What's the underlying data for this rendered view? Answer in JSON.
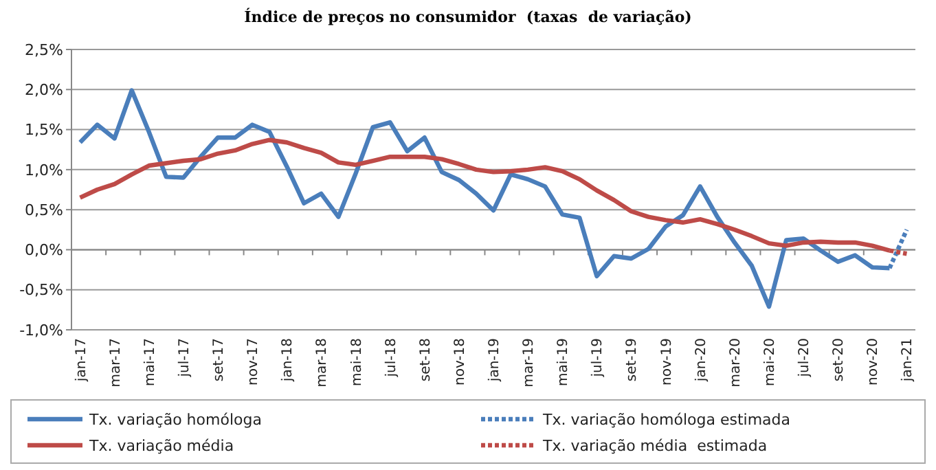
{
  "chart_data": {
    "type": "line",
    "title": "Índice de preços no consumidor  (taxas  de variação)",
    "categories": [
      "jan-17",
      null,
      "mar-17",
      null,
      "mai-17",
      null,
      "jul-17",
      null,
      "set-17",
      null,
      "nov-17",
      null,
      "jan-18",
      null,
      "mar-18",
      null,
      "mai-18",
      null,
      "jul-18",
      null,
      "set-18",
      null,
      "nov-18",
      null,
      "jan-19",
      null,
      "mar-19",
      null,
      "mai-19",
      null,
      "jul-19",
      null,
      "set-19",
      null,
      "nov-19",
      null,
      "jan-20",
      null,
      "mar-20",
      null,
      "mai-20",
      null,
      "jul-20",
      null,
      "set-20",
      null,
      "nov-20",
      null,
      "jan-21"
    ],
    "series": [
      {
        "name": "Tx. variação homóloga",
        "color": "#4a7ebb",
        "line_style": "solid",
        "values": [
          1.34,
          1.56,
          1.39,
          1.99,
          1.47,
          0.91,
          0.9,
          1.16,
          1.4,
          1.4,
          1.56,
          1.47,
          1.04,
          0.58,
          0.7,
          0.41,
          0.95,
          1.53,
          1.59,
          1.23,
          1.4,
          0.97,
          0.87,
          0.7,
          0.49,
          0.94,
          0.88,
          0.79,
          0.44,
          0.4,
          -0.33,
          -0.08,
          -0.11,
          0.01,
          0.29,
          0.43,
          0.79,
          0.41,
          0.09,
          -0.2,
          -0.71,
          0.12,
          0.14,
          -0.01,
          -0.15,
          -0.07,
          -0.22,
          -0.23,
          null
        ]
      },
      {
        "name": "Tx. variação homóloga estimada",
        "color": "#4a7ebb",
        "line_style": "dotted",
        "values": [
          null,
          null,
          null,
          null,
          null,
          null,
          null,
          null,
          null,
          null,
          null,
          null,
          null,
          null,
          null,
          null,
          null,
          null,
          null,
          null,
          null,
          null,
          null,
          null,
          null,
          null,
          null,
          null,
          null,
          null,
          null,
          null,
          null,
          null,
          null,
          null,
          null,
          null,
          null,
          null,
          null,
          null,
          null,
          null,
          null,
          null,
          null,
          -0.23,
          0.25
        ]
      },
      {
        "name": "Tx. variação média",
        "color": "#be4b48",
        "line_style": "solid",
        "values": [
          0.65,
          0.75,
          0.82,
          0.94,
          1.05,
          1.08,
          1.11,
          1.13,
          1.2,
          1.24,
          1.32,
          1.37,
          1.34,
          1.27,
          1.21,
          1.09,
          1.06,
          1.11,
          1.16,
          1.16,
          1.16,
          1.13,
          1.07,
          1.0,
          0.97,
          0.98,
          1.0,
          1.03,
          0.98,
          0.88,
          0.74,
          0.62,
          0.48,
          0.41,
          0.37,
          0.34,
          0.38,
          0.32,
          0.25,
          0.17,
          0.08,
          0.05,
          0.09,
          0.1,
          0.09,
          0.09,
          0.05,
          -0.01,
          null
        ]
      },
      {
        "name": "Tx. variação média  estimada",
        "color": "#be4b48",
        "line_style": "dotted",
        "values": [
          null,
          null,
          null,
          null,
          null,
          null,
          null,
          null,
          null,
          null,
          null,
          null,
          null,
          null,
          null,
          null,
          null,
          null,
          null,
          null,
          null,
          null,
          null,
          null,
          null,
          null,
          null,
          null,
          null,
          null,
          null,
          null,
          null,
          null,
          null,
          null,
          null,
          null,
          null,
          null,
          null,
          null,
          null,
          null,
          null,
          null,
          null,
          -0.01,
          -0.05
        ]
      }
    ],
    "ylim": [
      -1.0,
      2.5
    ],
    "yticks": [
      {
        "value": -1.0,
        "label": "-1,0%"
      },
      {
        "value": -0.5,
        "label": "-0,5%"
      },
      {
        "value": 0,
        "label": "0,0%"
      },
      {
        "value": 0.5,
        "label": "0,5%"
      },
      {
        "value": 1.0,
        "label": "1,0%"
      },
      {
        "value": 1.5,
        "label": "1,5%"
      },
      {
        "value": 2.0,
        "label": "2,0%"
      },
      {
        "value": 2.5,
        "label": "2,5%"
      }
    ],
    "grid": "y",
    "legend": "bottom",
    "marker": "none"
  }
}
